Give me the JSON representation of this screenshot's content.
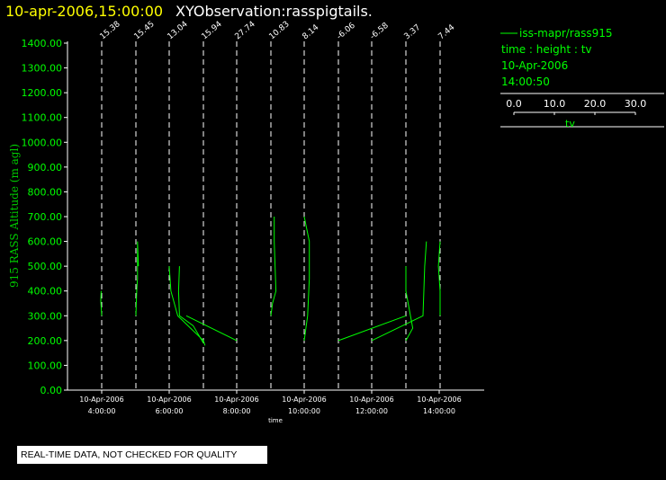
{
  "header": {
    "date_time": "10-apr-2006,15:00:00",
    "title": "XYObservation:rasspigtails."
  },
  "legend": {
    "series_name": "iss-mapr/rass915",
    "line2": "time : height : tv",
    "line3": "10-Apr-2006",
    "line4": "14:00:50",
    "scale_ticks": [
      "0.0",
      "10.0",
      "20.0",
      "30.0"
    ],
    "scale_label": "tv"
  },
  "footer": {
    "notice": "REAL-TIME DATA, NOT CHECKED FOR QUALITY"
  },
  "colors": {
    "background": "#000000",
    "axis": "#ffffff",
    "trace": "#00ff00",
    "tick_text": "#00ff00",
    "title_date": "#ffff00",
    "title_main": "#ffffff"
  },
  "chart_data": {
    "type": "line",
    "ylabel": "915 RASS Altitude (m agl)",
    "xlabel": "time",
    "ylim": [
      0,
      1400
    ],
    "xlim_hours": [
      2.0,
      16.0
    ],
    "y_ticks": [
      "0.00",
      "100.00",
      "200.00",
      "300.00",
      "400.00",
      "500.00",
      "600.00",
      "700.00",
      "800.00",
      "900.00",
      "1000.00",
      "1100.00",
      "1200.00",
      "1300.00",
      "1400.00"
    ],
    "x_ticks": [
      {
        "hour": 4,
        "date": "10-Apr-2006",
        "time": "4:00:00"
      },
      {
        "hour": 6,
        "date": "10-Apr-2006",
        "time": "6:00:00"
      },
      {
        "hour": 8,
        "date": "10-Apr-2006",
        "time": "8:00:00"
      },
      {
        "hour": 10,
        "date": "10-Apr-2006",
        "time": "10:00:00"
      },
      {
        "hour": 12,
        "date": "10-Apr-2006",
        "time": "12:00:00"
      },
      {
        "hour": 14,
        "date": "10-Apr-2006",
        "time": "14:00:00"
      }
    ],
    "observations": [
      {
        "hour": 3.0,
        "label": "15.38"
      },
      {
        "hour": 5.0,
        "label": "15.45"
      },
      {
        "hour": 7.0,
        "label": "13.04"
      },
      {
        "hour": 9.0,
        "label": "15.94"
      },
      {
        "hour": 11.0,
        "label": "27.74"
      },
      {
        "hour": 13.0,
        "label": "10.83"
      },
      {
        "hour": 15.0,
        "label": "8.14"
      },
      {
        "hour": 17.0,
        "label": "-6.06"
      },
      {
        "hour": 19.0,
        "label": "-6.58"
      },
      {
        "hour": 21.0,
        "label": "3.37"
      },
      {
        "hour": 23.0,
        "label": "7.44"
      }
    ],
    "series": [
      {
        "hour_offset": 3.0,
        "points": [
          [
            3.0,
            300
          ],
          [
            2.95,
            360
          ],
          [
            2.97,
            400
          ]
        ]
      },
      {
        "hour_offset": 5.0,
        "points": [
          [
            5.0,
            300
          ],
          [
            5.05,
            400
          ],
          [
            5.1,
            450
          ],
          [
            5.1,
            600
          ],
          [
            5.15,
            500
          ]
        ]
      },
      {
        "hour_offset": 7.0,
        "points": [
          [
            7.0,
            500
          ],
          [
            7.1,
            400
          ],
          [
            7.5,
            300
          ],
          [
            9.0,
            200
          ],
          [
            9.1,
            180
          ]
        ]
      },
      {
        "hour_offset": 9.0,
        "points": [
          [
            9.0,
            190
          ],
          [
            8.4,
            260
          ],
          [
            7.6,
            300
          ],
          [
            7.55,
            400
          ],
          [
            7.6,
            500
          ]
        ]
      },
      {
        "hour_offset": 11.0,
        "points": [
          [
            11.0,
            200
          ],
          [
            8.0,
            300
          ]
        ]
      },
      {
        "hour_offset": 13.0,
        "points": [
          [
            13.0,
            300
          ],
          [
            13.1,
            350
          ],
          [
            13.3,
            400
          ],
          [
            13.2,
            600
          ],
          [
            13.2,
            700
          ]
        ]
      },
      {
        "hour_offset": 15.0,
        "points": [
          [
            15.0,
            200
          ],
          [
            15.2,
            300
          ],
          [
            15.3,
            450
          ],
          [
            15.3,
            600
          ],
          [
            15.0,
            700
          ]
        ]
      },
      {
        "hour_offset": 17.0,
        "points": [
          [
            17.0,
            200
          ],
          [
            21.0,
            300
          ]
        ]
      },
      {
        "hour_offset": 19.0,
        "points": [
          [
            19.0,
            200
          ],
          [
            22.0,
            300
          ],
          [
            22.1,
            500
          ],
          [
            22.2,
            600
          ]
        ]
      },
      {
        "hour_offset": 21.0,
        "points": [
          [
            21.0,
            200
          ],
          [
            21.4,
            250
          ],
          [
            21.0,
            400
          ],
          [
            21.0,
            500
          ]
        ]
      },
      {
        "hour_offset": 23.0,
        "points": [
          [
            23.0,
            300
          ],
          [
            23.0,
            400
          ],
          [
            22.9,
            500
          ],
          [
            23.0,
            600
          ]
        ]
      }
    ]
  }
}
